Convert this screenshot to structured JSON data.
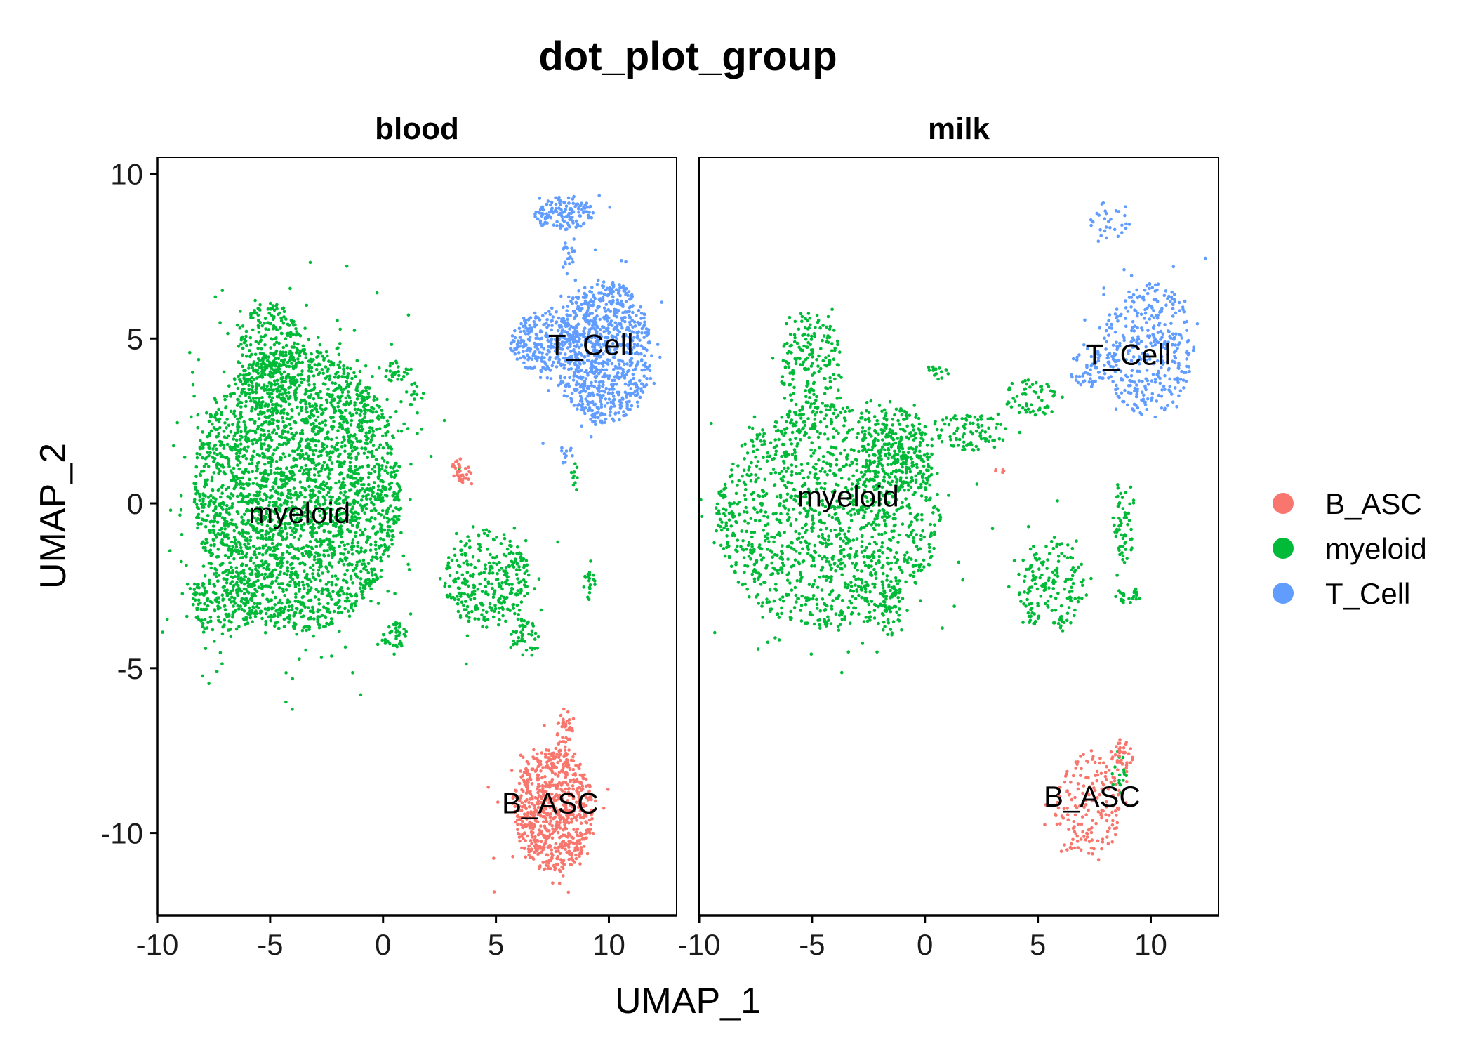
{
  "chart_data": {
    "type": "scatter",
    "title": "dot_plot_group",
    "xlabel": "UMAP_1",
    "ylabel": "UMAP_2",
    "xlim": [
      -10,
      13
    ],
    "ylim": [
      -12.5,
      10.5
    ],
    "x_ticks": [
      -10,
      -5,
      0,
      5,
      10
    ],
    "y_ticks": [
      -10,
      -5,
      0,
      5,
      10
    ],
    "x_tick_labels": [
      "-10",
      "-5",
      "0",
      "5",
      "10"
    ],
    "y_tick_labels": [
      "-10",
      "-5",
      "0",
      "5",
      "10"
    ],
    "grid": false,
    "legend_position": "right",
    "series": [
      {
        "name": "B_ASC",
        "color": "#F8766D"
      },
      {
        "name": "myeloid",
        "color": "#00BA38"
      },
      {
        "name": "T_Cell",
        "color": "#619CFF"
      }
    ],
    "panels": [
      {
        "name": "blood",
        "labels": [
          {
            "text": "myeloid",
            "x": -3.7,
            "y": -0.3
          },
          {
            "text": "T_Cell",
            "x": 9.2,
            "y": 4.8
          },
          {
            "text": "B_ASC",
            "x": 7.4,
            "y": -9.1
          }
        ],
        "clusters": [
          {
            "series": "myeloid",
            "cx": -3.8,
            "cy": 0.4,
            "rx": 4.6,
            "ry": 4.3,
            "density": 3000
          },
          {
            "series": "myeloid",
            "cx": -5.0,
            "cy": 4.4,
            "rx": 1.5,
            "ry": 1.7,
            "density": 300
          },
          {
            "series": "myeloid",
            "cx": -7.0,
            "cy": -3.0,
            "rx": 1.5,
            "ry": 1.0,
            "density": 180
          },
          {
            "series": "myeloid",
            "cx": 4.6,
            "cy": -2.3,
            "rx": 1.9,
            "ry": 1.5,
            "density": 320
          },
          {
            "series": "myeloid",
            "cx": 6.2,
            "cy": -4.0,
            "rx": 0.8,
            "ry": 0.7,
            "density": 45
          },
          {
            "series": "myeloid",
            "cx": 0.5,
            "cy": -4.0,
            "rx": 0.6,
            "ry": 0.4,
            "density": 40
          },
          {
            "series": "myeloid",
            "cx": 0.6,
            "cy": 4.0,
            "rx": 0.5,
            "ry": 0.35,
            "density": 25
          },
          {
            "series": "myeloid",
            "cx": 1.5,
            "cy": 3.3,
            "rx": 0.35,
            "ry": 0.6,
            "density": 14
          },
          {
            "series": "myeloid",
            "cx": 9.1,
            "cy": -2.5,
            "rx": 0.3,
            "ry": 0.6,
            "density": 20
          },
          {
            "series": "myeloid",
            "cx": 8.5,
            "cy": 0.7,
            "rx": 0.2,
            "ry": 0.5,
            "density": 10
          },
          {
            "series": "T_Cell",
            "cx": 9.8,
            "cy": 4.6,
            "rx": 2.1,
            "ry": 2.2,
            "density": 900
          },
          {
            "series": "T_Cell",
            "cx": 7.1,
            "cy": 4.9,
            "rx": 1.5,
            "ry": 0.9,
            "density": 250
          },
          {
            "series": "T_Cell",
            "cx": 8.0,
            "cy": 8.8,
            "rx": 1.3,
            "ry": 0.5,
            "density": 140
          },
          {
            "series": "T_Cell",
            "cx": 8.2,
            "cy": 7.5,
            "rx": 0.3,
            "ry": 0.6,
            "density": 20
          },
          {
            "series": "T_Cell",
            "cx": 8.0,
            "cy": 1.5,
            "rx": 0.4,
            "ry": 0.3,
            "density": 12
          },
          {
            "series": "B_ASC",
            "cx": 3.5,
            "cy": 1.0,
            "rx": 0.45,
            "ry": 0.4,
            "density": 35
          },
          {
            "series": "B_ASC",
            "cx": 7.5,
            "cy": -9.3,
            "rx": 1.8,
            "ry": 1.9,
            "density": 750
          },
          {
            "series": "B_ASC",
            "cx": 8.0,
            "cy": -6.8,
            "rx": 0.4,
            "ry": 0.7,
            "density": 40
          }
        ]
      },
      {
        "name": "milk",
        "labels": [
          {
            "text": "myeloid",
            "x": -3.4,
            "y": 0.2
          },
          {
            "text": "T_Cell",
            "x": 9.0,
            "y": 4.5
          },
          {
            "text": "B_ASC",
            "x": 7.4,
            "y": -8.9
          }
        ],
        "clusters": [
          {
            "series": "myeloid",
            "cx": -4.3,
            "cy": -0.4,
            "rx": 5.0,
            "ry": 3.4,
            "density": 1400
          },
          {
            "series": "myeloid",
            "cx": -5.0,
            "cy": 4.0,
            "rx": 1.4,
            "ry": 1.8,
            "density": 200
          },
          {
            "series": "myeloid",
            "cx": -1.3,
            "cy": 1.5,
            "rx": 1.7,
            "ry": 1.4,
            "density": 250
          },
          {
            "series": "myeloid",
            "cx": 2.0,
            "cy": 2.2,
            "rx": 1.6,
            "ry": 0.6,
            "density": 90
          },
          {
            "series": "myeloid",
            "cx": 4.8,
            "cy": 3.2,
            "rx": 1.3,
            "ry": 0.55,
            "density": 60
          },
          {
            "series": "myeloid",
            "cx": -1.5,
            "cy": -3.3,
            "rx": 0.8,
            "ry": 0.7,
            "density": 50
          },
          {
            "series": "myeloid",
            "cx": 5.6,
            "cy": -2.5,
            "rx": 1.5,
            "ry": 1.5,
            "density": 170
          },
          {
            "series": "myeloid",
            "cx": 8.8,
            "cy": -0.5,
            "rx": 0.5,
            "ry": 1.3,
            "density": 60
          },
          {
            "series": "myeloid",
            "cx": 9.0,
            "cy": -2.8,
            "rx": 0.6,
            "ry": 0.25,
            "density": 25
          },
          {
            "series": "myeloid",
            "cx": 0.6,
            "cy": 4.0,
            "rx": 0.5,
            "ry": 0.3,
            "density": 15
          },
          {
            "series": "myeloid",
            "cx": 8.5,
            "cy": -8.0,
            "rx": 0.5,
            "ry": 0.6,
            "density": 18
          },
          {
            "series": "T_Cell",
            "cx": 9.9,
            "cy": 4.7,
            "rx": 2.0,
            "ry": 2.0,
            "density": 380
          },
          {
            "series": "T_Cell",
            "cx": 7.5,
            "cy": 4.1,
            "rx": 1.1,
            "ry": 0.6,
            "density": 60
          },
          {
            "series": "T_Cell",
            "cx": 8.2,
            "cy": 8.6,
            "rx": 0.9,
            "ry": 0.55,
            "density": 30
          },
          {
            "series": "B_ASC",
            "cx": 7.2,
            "cy": -9.2,
            "rx": 1.5,
            "ry": 1.6,
            "density": 170
          },
          {
            "series": "B_ASC",
            "cx": 8.7,
            "cy": -7.7,
            "rx": 0.5,
            "ry": 0.55,
            "density": 40
          },
          {
            "series": "B_ASC",
            "cx": 3.2,
            "cy": 1.0,
            "rx": 0.3,
            "ry": 0.1,
            "density": 6
          }
        ]
      }
    ]
  }
}
